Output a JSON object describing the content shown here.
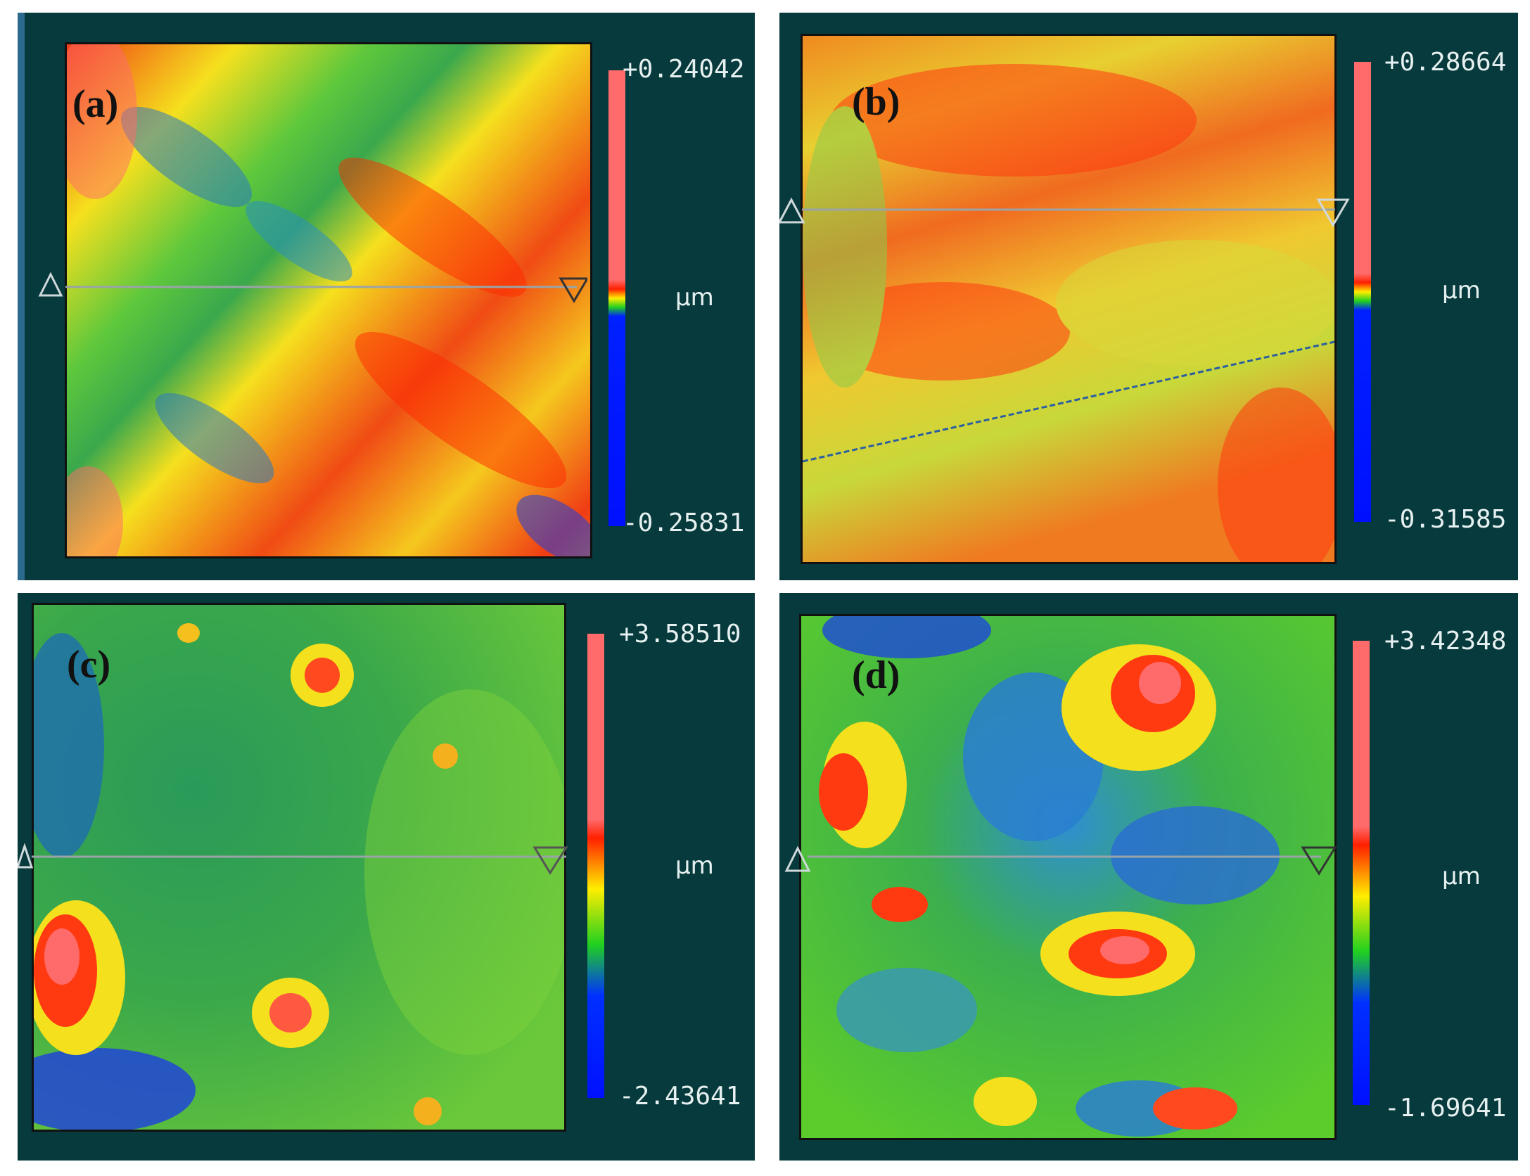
{
  "panels": [
    {
      "id": "a",
      "label": "(a)",
      "scale_max": "+0.24042",
      "scale_min": "-0.25831",
      "unit": "µm"
    },
    {
      "id": "b",
      "label": "(b)",
      "scale_max": "+0.28664",
      "scale_min": "-0.31585",
      "unit": "µm"
    },
    {
      "id": "c",
      "label": "(c)",
      "scale_max": "+3.58510",
      "scale_min": "-2.43641",
      "unit": "µm"
    },
    {
      "id": "d",
      "label": "(d)",
      "scale_max": "+3.42348",
      "scale_min": "-1.69641",
      "unit": "µm"
    }
  ],
  "colors": {
    "panel_background": "#073a3c",
    "high": "#ff6a6a",
    "mid_red": "#ff3a00",
    "yellow": "#f5f000",
    "green": "#2dcc2d",
    "low": "#0018ff"
  }
}
